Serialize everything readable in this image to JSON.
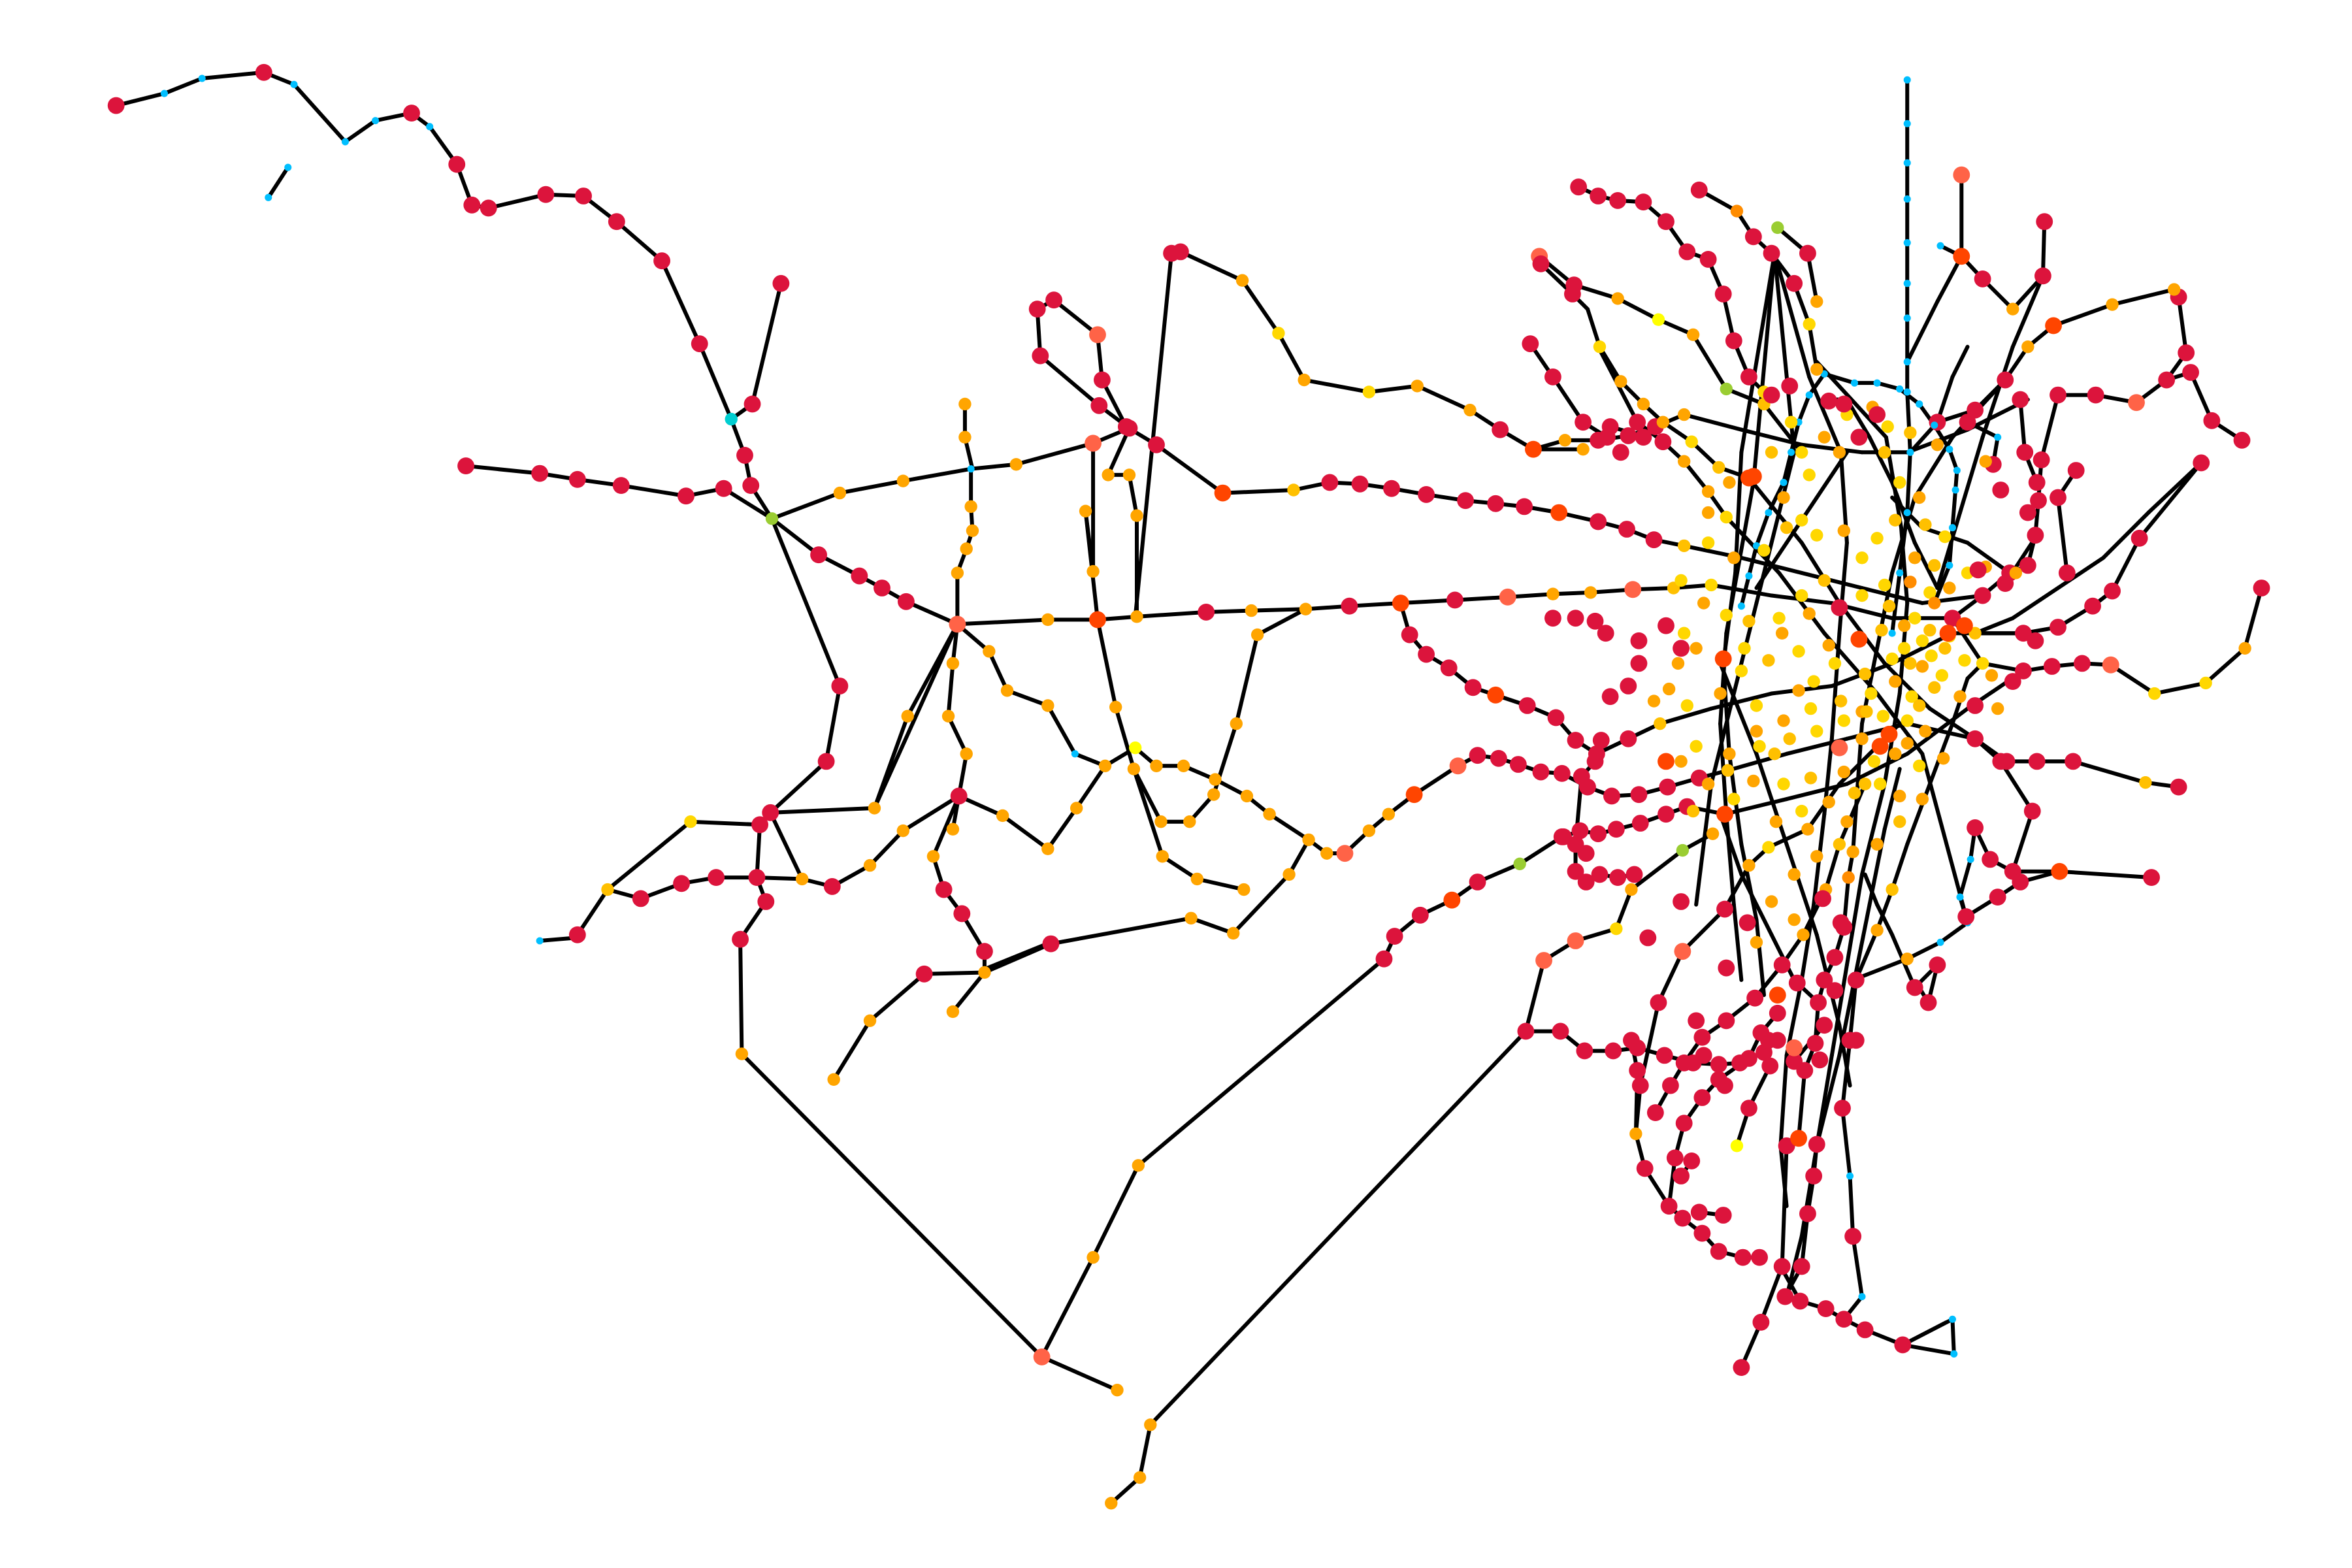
{
  "palette": {
    "c1": "#dc143c",
    "c2": "#ff4500",
    "c3": "#ff6347",
    "c4": "#ff8c00",
    "c5": "#ffa500",
    "c6": "#ffc000",
    "c7": "#ffd700",
    "c8": "#ffff00",
    "c9": "#00bfff",
    "c10": "#00ced1",
    "c11": "#9acd32"
  }
}
